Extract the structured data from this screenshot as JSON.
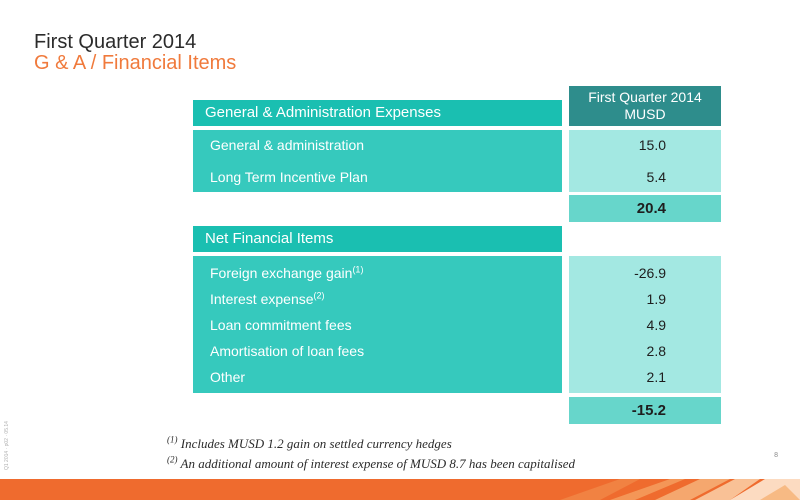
{
  "header": {
    "title": "First Quarter 2014",
    "subtitle": "G & A / Financial Items"
  },
  "table": {
    "column_header": [
      "First Quarter 2014",
      "MUSD"
    ],
    "ga": {
      "heading": "General & Administration Expenses",
      "rows": [
        {
          "label": "General & administration",
          "value": "15.0"
        },
        {
          "label": "Long Term Incentive Plan",
          "value": "5.4"
        }
      ],
      "total": "20.4"
    },
    "nfi": {
      "heading": "Net Financial Items",
      "rows": [
        {
          "label": "Foreign exchange gain",
          "sup": "(1)",
          "value": "-26.9"
        },
        {
          "label": "Interest expense",
          "sup": "(2)",
          "value": "1.9"
        },
        {
          "label": "Loan commitment fees",
          "value": "4.9"
        },
        {
          "label": "Amortisation of loan fees",
          "value": "2.8"
        },
        {
          "label": "Other",
          "value": "2.1"
        }
      ],
      "total": "-15.2"
    }
  },
  "footnotes": [
    {
      "marker": "(1)",
      "text": "Includes MUSD 1.2 gain on settled currency hedges"
    },
    {
      "marker": "(2)",
      "text": "An additional amount of interest expense of MUSD 8.7 has been capitalised"
    }
  ],
  "side_code": "Q1 2014 · p02 · 05.14",
  "page_number": "8",
  "colors": {
    "accent_orange": "#ef6b2e",
    "header_teal": "#1abfb1",
    "row_teal": "#36c9bd",
    "value_light": "#a3e8e2",
    "total_teal": "#67d6cb",
    "column_header_dark": "#2e8d8c"
  }
}
